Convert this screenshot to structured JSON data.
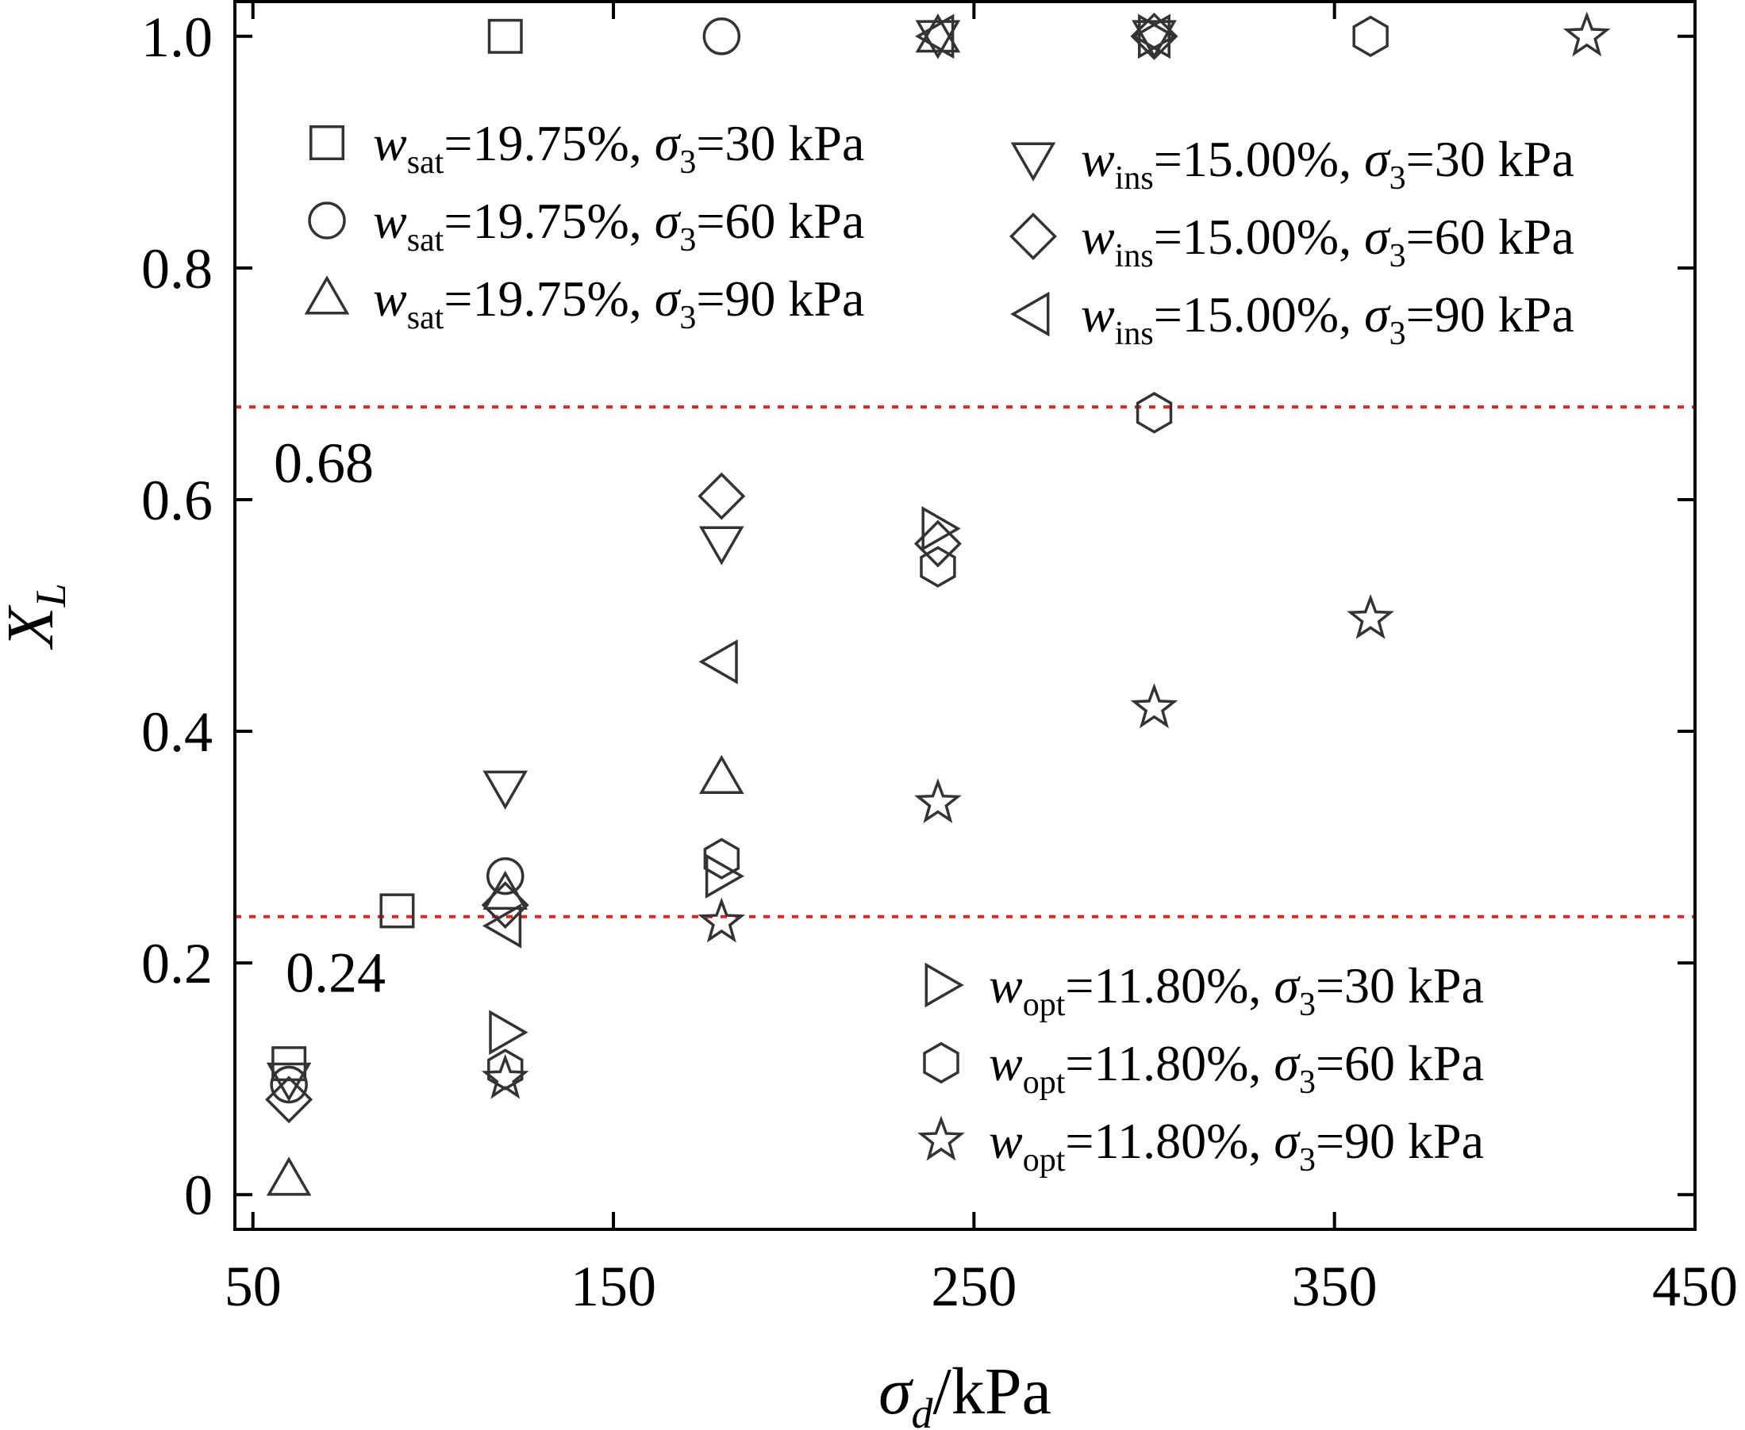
{
  "chart_data": {
    "type": "scatter",
    "xlabel": {
      "main": "σ",
      "sub": "d",
      "unit": "/kPa"
    },
    "ylabel": {
      "main": "X",
      "sub": "L"
    },
    "xlim": [
      45,
      450
    ],
    "ylim": [
      -0.03,
      1.03
    ],
    "xticks": [
      {
        "value": 50,
        "label": "50"
      },
      {
        "value": 150,
        "label": "150"
      },
      {
        "value": 250,
        "label": "250"
      },
      {
        "value": 350,
        "label": "350"
      },
      {
        "value": 450,
        "label": "450"
      }
    ],
    "yticks": [
      {
        "value": 0,
        "label": "0"
      },
      {
        "value": 0.2,
        "label": "0.2"
      },
      {
        "value": 0.4,
        "label": "0.4"
      },
      {
        "value": 0.6,
        "label": "0.6"
      },
      {
        "value": 0.8,
        "label": "0.8"
      },
      {
        "value": 1.0,
        "label": "1.0"
      }
    ],
    "thresholds": [
      {
        "value": 0.68,
        "label": "0.68",
        "color": "#e52420"
      },
      {
        "value": 0.24,
        "label": "0.24",
        "color": "#e52420"
      }
    ],
    "series": [
      {
        "name": "wsat=19.75%, σ3=30 kPa",
        "w": "w",
        "wsub": "sat",
        "moisture": "=19.75%, ",
        "s": "σ",
        "ssub": "3",
        "rest": "=30 kPa",
        "marker": "square",
        "points": [
          [
            60,
            0.113
          ],
          [
            90,
            0.245
          ],
          [
            120,
            1.0
          ]
        ]
      },
      {
        "name": "wsat=19.75%, σ3=60 kPa",
        "w": "w",
        "wsub": "sat",
        "moisture": "=19.75%, ",
        "s": "σ",
        "ssub": "3",
        "rest": "=60 kPa",
        "marker": "circle",
        "points": [
          [
            60,
            0.095
          ],
          [
            120,
            0.275
          ],
          [
            180,
            1.0
          ]
        ]
      },
      {
        "name": "wsat=19.75%, σ3=90 kPa",
        "w": "w",
        "wsub": "sat",
        "moisture": "=19.75%, ",
        "s": "σ",
        "ssub": "3",
        "rest": "=90 kPa",
        "marker": "triangle-up",
        "points": [
          [
            60,
            0.013
          ],
          [
            120,
            0.26
          ],
          [
            180,
            0.36
          ],
          [
            240,
            1.0
          ]
        ]
      },
      {
        "name": "wins=15.00%, σ3=30 kPa",
        "w": "w",
        "wsub": "ins",
        "moisture": "=15.00%, ",
        "s": "σ",
        "ssub": "3",
        "rest": "=30 kPa",
        "marker": "triangle-down",
        "points": [
          [
            60,
            0.1
          ],
          [
            120,
            0.352
          ],
          [
            180,
            0.563
          ],
          [
            240,
            1.0
          ],
          [
            300,
            1.0
          ]
        ]
      },
      {
        "name": "wins=15.00%, σ3=60 kPa",
        "w": "w",
        "wsub": "ins",
        "moisture": "=15.00%, ",
        "s": "σ",
        "ssub": "3",
        "rest": "=60 kPa",
        "marker": "diamond",
        "points": [
          [
            60,
            0.082
          ],
          [
            120,
            0.25
          ],
          [
            180,
            0.603
          ],
          [
            240,
            0.562
          ],
          [
            300,
            1.0
          ]
        ]
      },
      {
        "name": "wins=15.00%, σ3=90 kPa",
        "w": "w",
        "wsub": "ins",
        "moisture": "=15.00%, ",
        "s": "σ",
        "ssub": "3",
        "rest": "=90 kPa",
        "marker": "triangle-left",
        "points": [
          [
            120,
            0.232
          ],
          [
            180,
            0.46
          ],
          [
            240,
            1.0
          ],
          [
            300,
            1.0
          ]
        ]
      },
      {
        "name": "wopt=11.80%, σ3=30 kPa",
        "w": "w",
        "wsub": "opt",
        "moisture": "=11.80%, ",
        "s": "σ",
        "ssub": "3",
        "rest": "=30 kPa",
        "marker": "triangle-right",
        "points": [
          [
            120,
            0.14
          ],
          [
            180,
            0.275
          ],
          [
            240,
            0.575
          ],
          [
            300,
            1.0
          ]
        ]
      },
      {
        "name": "wopt=11.80%, σ3=60 kPa",
        "w": "w",
        "wsub": "opt",
        "moisture": "=11.80%, ",
        "s": "σ",
        "ssub": "3",
        "rest": "=60 kPa",
        "marker": "hexagon",
        "points": [
          [
            120,
            0.108
          ],
          [
            180,
            0.29
          ],
          [
            240,
            0.542
          ],
          [
            300,
            0.675
          ],
          [
            360,
            1.0
          ]
        ]
      },
      {
        "name": "wopt=11.80%, σ3=90 kPa",
        "w": "w",
        "wsub": "opt",
        "moisture": "=11.80%, ",
        "s": "σ",
        "ssub": "3",
        "rest": "=90 kPa",
        "marker": "star",
        "points": [
          [
            120,
            0.1
          ],
          [
            180,
            0.235
          ],
          [
            240,
            0.338
          ],
          [
            300,
            0.42
          ],
          [
            360,
            0.497
          ],
          [
            420,
            1.0
          ]
        ]
      }
    ],
    "legends": [
      {
        "position": "top-left",
        "series": [
          0,
          1,
          2
        ]
      },
      {
        "position": "top-right",
        "series": [
          3,
          4,
          5
        ]
      },
      {
        "position": "bottom-right",
        "series": [
          6,
          7,
          8
        ]
      }
    ]
  }
}
